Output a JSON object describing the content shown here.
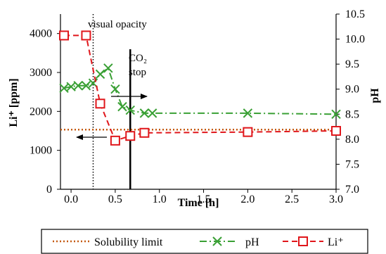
{
  "chart_data": {
    "type": "line",
    "xlabel": "Time [h]",
    "ylabel_left": "Li⁺ [ppm]",
    "ylabel_right": "pH",
    "x_ticks": [
      "0.0",
      "0.5",
      "1.0",
      "1.5",
      "2.0",
      "2.5",
      "3.0"
    ],
    "y_left_ticks": [
      "0",
      "1000",
      "2000",
      "3000",
      "4000"
    ],
    "y_right_ticks": [
      "7.0",
      "7.5",
      "8.0",
      "8.5",
      "9.0",
      "9.5",
      "10.0",
      "10.5"
    ],
    "xlim": [
      -0.12,
      3.0
    ],
    "ylim_left": [
      0,
      4500
    ],
    "ylim_right": [
      7.0,
      10.5
    ],
    "grid": false,
    "legend_position": "bottom",
    "series": [
      {
        "name": "Solubility limit",
        "axis": "left",
        "style": "dotted",
        "color": "#C55A11",
        "x": [
          -0.12,
          3.0
        ],
        "y": [
          1530,
          1530
        ]
      },
      {
        "name": "pH",
        "axis": "right",
        "style": "dash-dot",
        "marker": "x",
        "color": "#3AA035",
        "x": [
          -0.08,
          0.0,
          0.08,
          0.17,
          0.25,
          0.33,
          0.42,
          0.5,
          0.58,
          0.67,
          0.83,
          0.92,
          2.0,
          3.0
        ],
        "y": [
          9.02,
          9.05,
          9.07,
          9.07,
          9.12,
          9.3,
          9.42,
          9.0,
          8.65,
          8.58,
          8.52,
          8.52,
          8.52,
          8.5
        ]
      },
      {
        "name": "Li⁺",
        "axis": "left",
        "style": "dashed",
        "marker": "square",
        "color": "#E0161B",
        "x": [
          -0.08,
          0.17,
          0.33,
          0.5,
          0.67,
          0.83,
          2.0,
          3.0
        ],
        "y": [
          3950,
          3950,
          2200,
          1250,
          1370,
          1450,
          1470,
          1500
        ]
      }
    ],
    "annotations": [
      {
        "text": "visual opacity",
        "x": 0.25,
        "line": "dotted"
      },
      {
        "text_lines": [
          "CO₂",
          "stop"
        ],
        "x": 0.67,
        "line": "solid"
      }
    ]
  }
}
